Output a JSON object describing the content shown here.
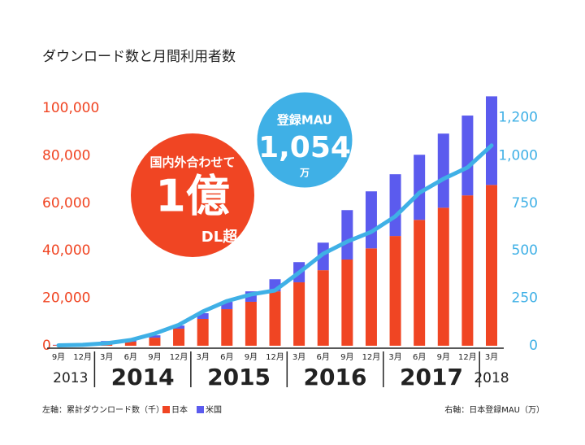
{
  "chart_data": {
    "type": "bar-line",
    "title": "ダウンロード数と月間利用者数",
    "categories": [
      "9月",
      "12月",
      "3月",
      "6月",
      "9月",
      "12月",
      "3月",
      "6月",
      "9月",
      "12月",
      "3月",
      "6月",
      "9月",
      "12月",
      "3月",
      "6月",
      "9月",
      "12月",
      "3月"
    ],
    "years": [
      "2013",
      "2014",
      "2015",
      "2016",
      "2017",
      "2018"
    ],
    "series": [
      {
        "name": "日本",
        "color": "#f04523",
        "values": [
          300,
          700,
          1500,
          1700,
          3400,
          7200,
          11300,
          15400,
          18500,
          22900,
          26700,
          31800,
          36300,
          41000,
          46200,
          53000,
          58100,
          63300,
          67700
        ]
      },
      {
        "name": "米国",
        "color": "#5b5bee",
        "values": [
          100,
          200,
          500,
          700,
          1000,
          1300,
          2400,
          3100,
          4400,
          5100,
          8500,
          11600,
          20800,
          24000,
          26000,
          27400,
          31200,
          33600,
          37300
        ]
      },
      {
        "name": "登録MAU",
        "color": "#3fb0e6",
        "axis": "y2",
        "values": [
          2,
          5,
          13,
          30,
          64,
          110,
          180,
          235,
          270,
          291,
          385,
          484,
          548,
          599,
          681,
          805,
          878,
          938,
          1054
        ]
      }
    ],
    "ylim": [
      0,
      100000
    ],
    "yticks": [
      0,
      {
        "value": 20000,
        "label": "20,000"
      },
      {
        "value": 40000,
        "label": "40,000"
      },
      {
        "value": 60000,
        "label": "60,000"
      },
      {
        "value": 80000,
        "label": "80,000"
      },
      {
        "value": 100000,
        "label": "100,000"
      }
    ],
    "y2lim": [
      0,
      1250
    ],
    "y2ticks": [
      0,
      250,
      500,
      750,
      {
        "value": 1000,
        "label": "1,000"
      },
      {
        "value": 1200,
        "label": "1,200"
      }
    ],
    "y_color": "#f04523",
    "y2_color": "#3fb0e6",
    "callout_downloads": {
      "line1": "国内外合わせて",
      "big": "1億",
      "line3": "DL超"
    },
    "callout_mau": {
      "line1": "登録MAU",
      "big": "1,054",
      "line3": "万"
    },
    "footer_left": "左軸：累計ダウンロード数（千）",
    "footer_right": "右軸：日本登録MAU（万）"
  }
}
